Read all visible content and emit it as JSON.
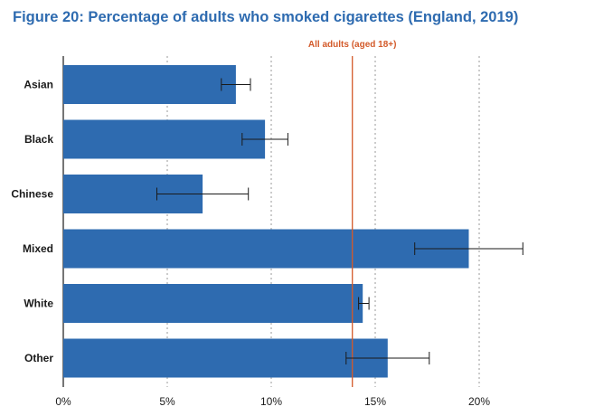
{
  "chart_data": {
    "type": "bar",
    "orientation": "horizontal",
    "title": "Figure 20: Percentage of adults who smoked cigarettes (England, 2019)",
    "categories": [
      "Asian",
      "Black",
      "Chinese",
      "Mixed",
      "White",
      "Other"
    ],
    "values": [
      8.3,
      9.7,
      6.7,
      19.5,
      14.4,
      15.6
    ],
    "error_low": [
      7.6,
      8.6,
      4.5,
      16.9,
      14.2,
      13.6
    ],
    "error_high": [
      9.0,
      10.8,
      8.9,
      22.1,
      14.7,
      17.6
    ],
    "xlim": [
      0,
      22
    ],
    "x_ticks": [
      0,
      5,
      10,
      15,
      20
    ],
    "x_tick_labels": [
      "0%",
      "5%",
      "10%",
      "15%",
      "20%"
    ],
    "grid": "vertical dashed",
    "reference_line": {
      "value": 13.9,
      "label": "All adults (aged 18+)"
    },
    "colors": {
      "bar": "#2e6bb0",
      "title": "#2e6bb0",
      "reference": "#d35a2a",
      "error_bar": "#1a1a1a",
      "grid": "#9a9a9a"
    }
  }
}
